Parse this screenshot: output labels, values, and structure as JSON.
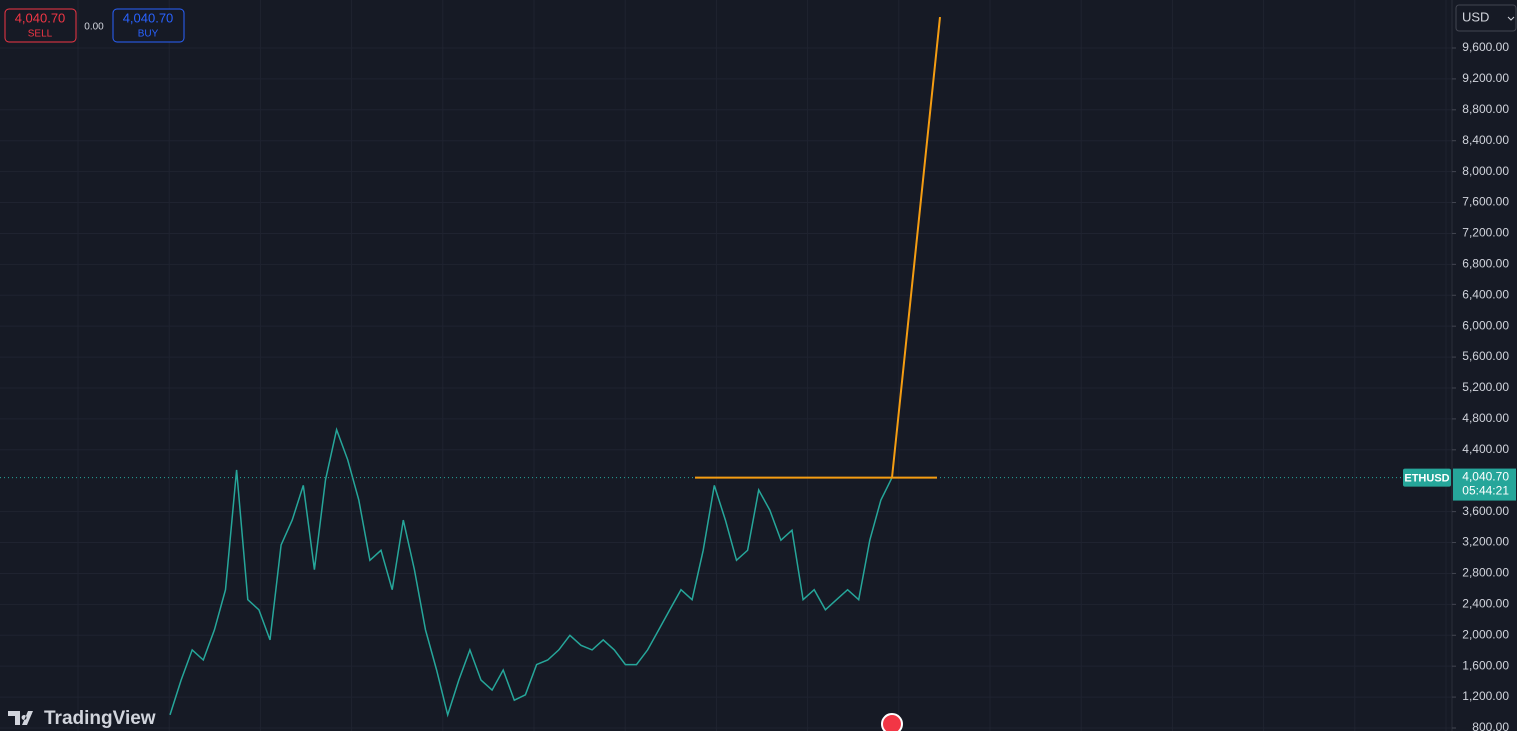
{
  "chart_data": {
    "type": "line",
    "symbol": "ETHUSD",
    "currency": "USD",
    "brand": "TradingView",
    "trade_panel": {
      "sell_price": "4,040.70",
      "sell_label": "SELL",
      "spread": "0.00",
      "buy_price": "4,040.70",
      "buy_label": "BUY"
    },
    "last_price": {
      "value": 4040.7,
      "label": "4,040.70"
    },
    "countdown": "05:44:21",
    "series": [
      {
        "name": "ETHUSD",
        "color": "#26a69a",
        "values": [
          970,
          1420,
          1810,
          1680,
          2070,
          2590,
          4140,
          2460,
          2330,
          1940,
          3170,
          3490,
          3940,
          2850,
          4010,
          4660,
          4270,
          3750,
          2970,
          3100,
          2590,
          3490,
          2850,
          2070,
          1550,
          970,
          1420,
          1810,
          1420,
          1290,
          1550,
          1160,
          1230,
          1620,
          1680,
          1810,
          2000,
          1870,
          1810,
          1940,
          1810,
          1620,
          1620,
          1810,
          2070,
          2330,
          2590,
          2460,
          3100,
          3940,
          3490,
          2970,
          3100,
          3880,
          3620,
          3230,
          3360,
          2460,
          2590,
          2330,
          2460,
          2590,
          2460,
          3230,
          3750,
          4040.7
        ]
      }
    ],
    "drawings": {
      "color": "#f59d12",
      "level": 4040.7,
      "target": 10000
    },
    "ylim": [
      761,
      10221
    ],
    "yticks": [
      {
        "value": 800,
        "label": "800.00"
      },
      {
        "value": 1200,
        "label": "1,200.00"
      },
      {
        "value": 1600,
        "label": "1,600.00"
      },
      {
        "value": 2000,
        "label": "2,000.00"
      },
      {
        "value": 2400,
        "label": "2,400.00"
      },
      {
        "value": 2800,
        "label": "2,800.00"
      },
      {
        "value": 3200,
        "label": "3,200.00"
      },
      {
        "value": 3600,
        "label": "3,600.00"
      },
      {
        "value": 4400,
        "label": "4,400.00"
      },
      {
        "value": 4800,
        "label": "4,800.00"
      },
      {
        "value": 5200,
        "label": "5,200.00"
      },
      {
        "value": 5600,
        "label": "5,600.00"
      },
      {
        "value": 6000,
        "label": "6,000.00"
      },
      {
        "value": 6400,
        "label": "6,400.00"
      },
      {
        "value": 6800,
        "label": "6,800.00"
      },
      {
        "value": 7200,
        "label": "7,200.00"
      },
      {
        "value": 7600,
        "label": "7,600.00"
      },
      {
        "value": 8000,
        "label": "8,000.00"
      },
      {
        "value": 8400,
        "label": "8,400.00"
      },
      {
        "value": 8800,
        "label": "8,800.00"
      },
      {
        "value": 9200,
        "label": "9,200.00"
      },
      {
        "value": 9600,
        "label": "9,600.00"
      }
    ],
    "grid": true
  }
}
